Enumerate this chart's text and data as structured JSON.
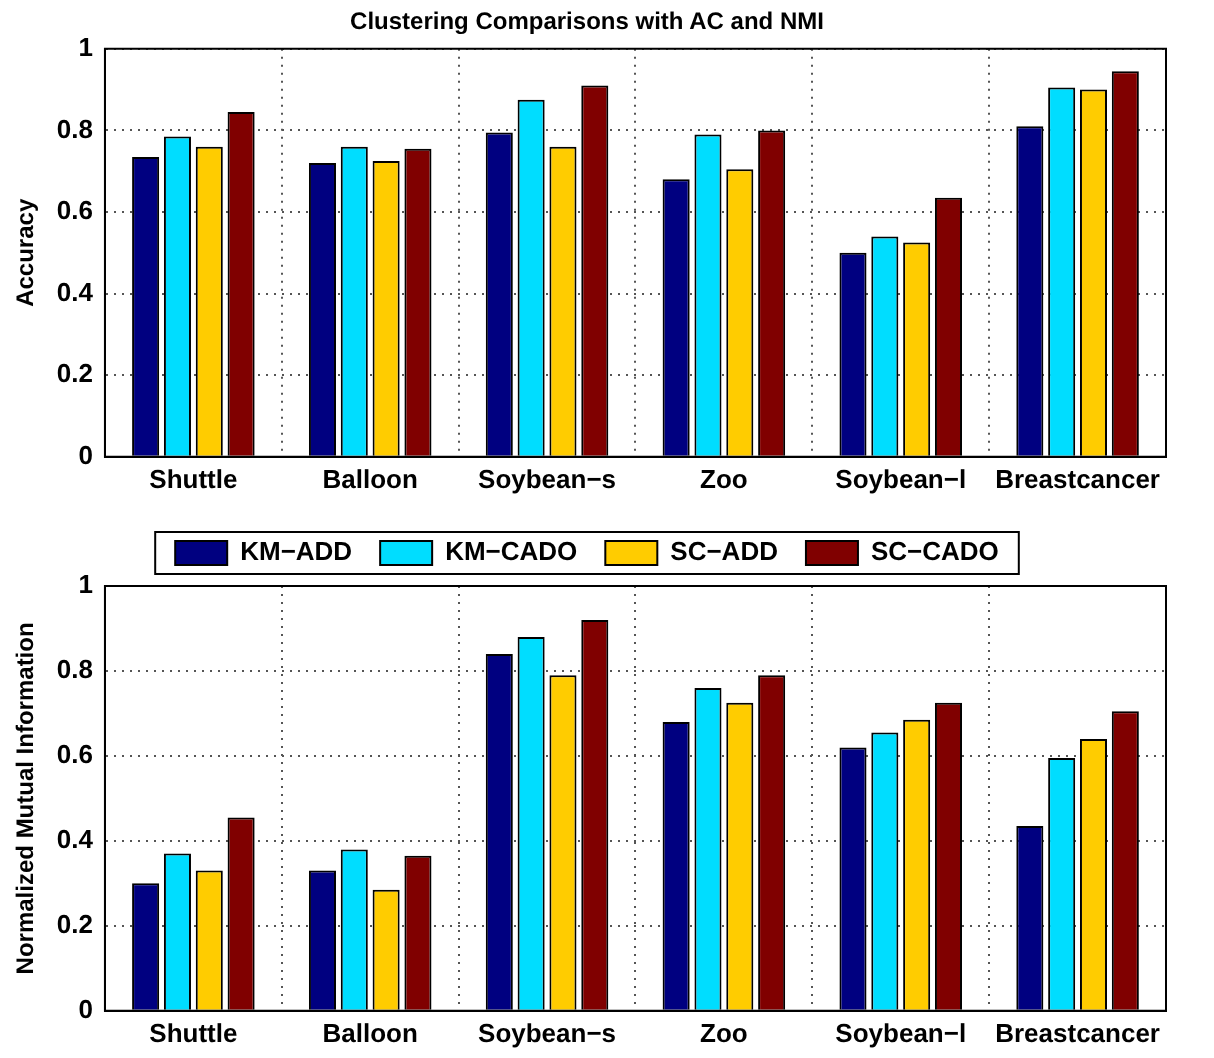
{
  "chart_data": [
    {
      "type": "bar",
      "title": "Clustering Comparisons with AC and NMI",
      "ylabel": "Accuracy",
      "categories": [
        "Shuttle",
        "Balloon",
        "Soybean−s",
        "Zoo",
        "Soybean−l",
        "Breastcancer"
      ],
      "series": [
        {
          "color": "#000080",
          "values": [
            0.735,
            0.72,
            0.795,
            0.68,
            0.5,
            0.81
          ]
        },
        {
          "color": "#00ddff",
          "values": [
            0.785,
            0.76,
            0.875,
            0.79,
            0.54,
            0.905
          ]
        },
        {
          "color": "#ffcc00",
          "values": [
            0.76,
            0.725,
            0.76,
            0.705,
            0.525,
            0.9
          ]
        },
        {
          "color": "#800000",
          "values": [
            0.845,
            0.755,
            0.91,
            0.8,
            0.635,
            0.945
          ]
        }
      ],
      "ylim": [
        0,
        1
      ],
      "yticks": [
        0,
        0.2,
        0.4,
        0.6,
        0.8,
        1
      ],
      "grid": true,
      "legend": false
    },
    {
      "type": "bar",
      "ylabel": "Normalized Mutual Information",
      "categories": [
        "Shuttle",
        "Balloon",
        "Soybean−s",
        "Zoo",
        "Soybean−l",
        "Breastcancer"
      ],
      "series": [
        {
          "name": "KM−ADD",
          "color": "#000080",
          "values": [
            0.3,
            0.33,
            0.84,
            0.68,
            0.62,
            0.435
          ]
        },
        {
          "name": "KM−CADO",
          "color": "#00ddff",
          "values": [
            0.37,
            0.38,
            0.88,
            0.76,
            0.655,
            0.595
          ]
        },
        {
          "name": "SC−ADD",
          "color": "#ffcc00",
          "values": [
            0.33,
            0.285,
            0.79,
            0.725,
            0.685,
            0.64
          ]
        },
        {
          "name": "SC−CADO",
          "color": "#800000",
          "values": [
            0.455,
            0.365,
            0.92,
            0.79,
            0.725,
            0.705
          ]
        }
      ],
      "ylim": [
        0,
        1
      ],
      "yticks": [
        0,
        0.2,
        0.4,
        0.6,
        0.8,
        1
      ],
      "grid": true,
      "legend": "top"
    }
  ]
}
